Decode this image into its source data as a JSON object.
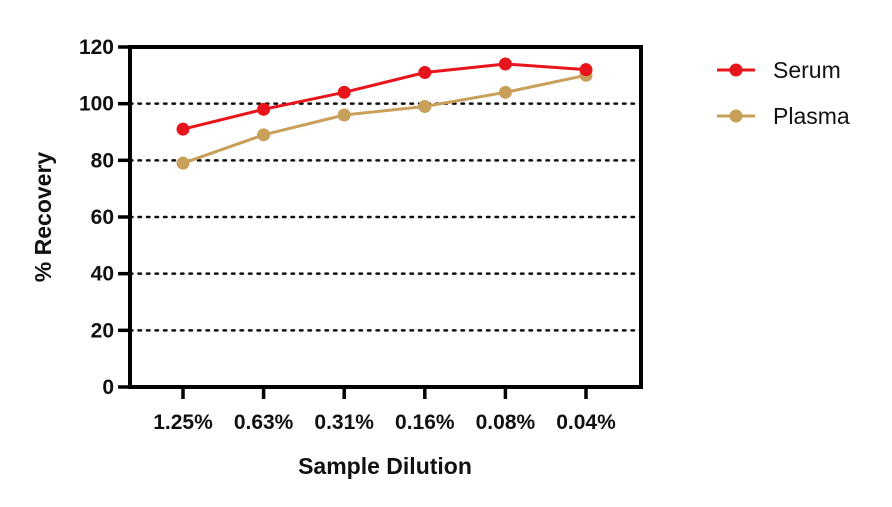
{
  "chart_data": {
    "type": "line",
    "title": "",
    "xlabel": "Sample Dilution",
    "ylabel": "% Recovery",
    "categories": [
      "1.25%",
      "0.63%",
      "0.31%",
      "0.16%",
      "0.08%",
      "0.04%"
    ],
    "ylim": [
      0,
      120
    ],
    "yticks": [
      "0",
      "20",
      "40",
      "60",
      "80",
      "100",
      "120"
    ],
    "grid": "dotted horizontal at 20, 40, 60, 80, 100",
    "legend_position": "top-right outside plot",
    "series": [
      {
        "name": "Serum",
        "color": "#e8141b",
        "values": [
          91,
          98,
          104,
          111,
          114,
          112
        ]
      },
      {
        "name": "Plasma",
        "color": "#c8a05a",
        "values": [
          79,
          89,
          96,
          99,
          104,
          110
        ]
      }
    ]
  }
}
